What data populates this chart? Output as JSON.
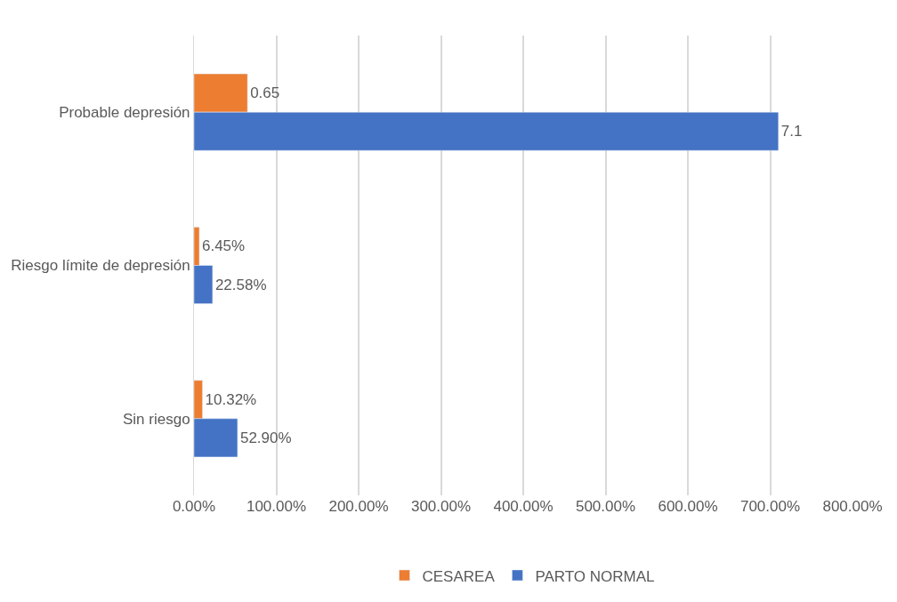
{
  "chart_data": {
    "type": "bar",
    "orientation": "horizontal",
    "categories": [
      "Probable depresión",
      "Riesgo límite de depresión",
      "Sin riesgo"
    ],
    "series": [
      {
        "name": "CESAREA",
        "color": "#ed7d31",
        "values": [
          0.65,
          0.0645,
          0.1032
        ],
        "value_labels": [
          "0.65",
          "6.45%",
          "10.32%"
        ]
      },
      {
        "name": "PARTO NORMAL",
        "color": "#4472c4",
        "values": [
          7.1,
          0.2258,
          0.529
        ],
        "value_labels": [
          "7.1",
          "22.58%",
          "52.90%"
        ]
      }
    ],
    "xlim": [
      0,
      8
    ],
    "xticks": [
      {
        "value": 0,
        "label": "0.00%"
      },
      {
        "value": 1,
        "label": "100.00%"
      },
      {
        "value": 2,
        "label": "200.00%"
      },
      {
        "value": 3,
        "label": "300.00%"
      },
      {
        "value": 4,
        "label": "400.00%"
      },
      {
        "value": 5,
        "label": "500.00%"
      },
      {
        "value": 6,
        "label": "600.00%"
      },
      {
        "value": 7,
        "label": "700.00%"
      },
      {
        "value": 8,
        "label": "800.00%"
      }
    ],
    "grid": "x",
    "legend": "bottom"
  }
}
